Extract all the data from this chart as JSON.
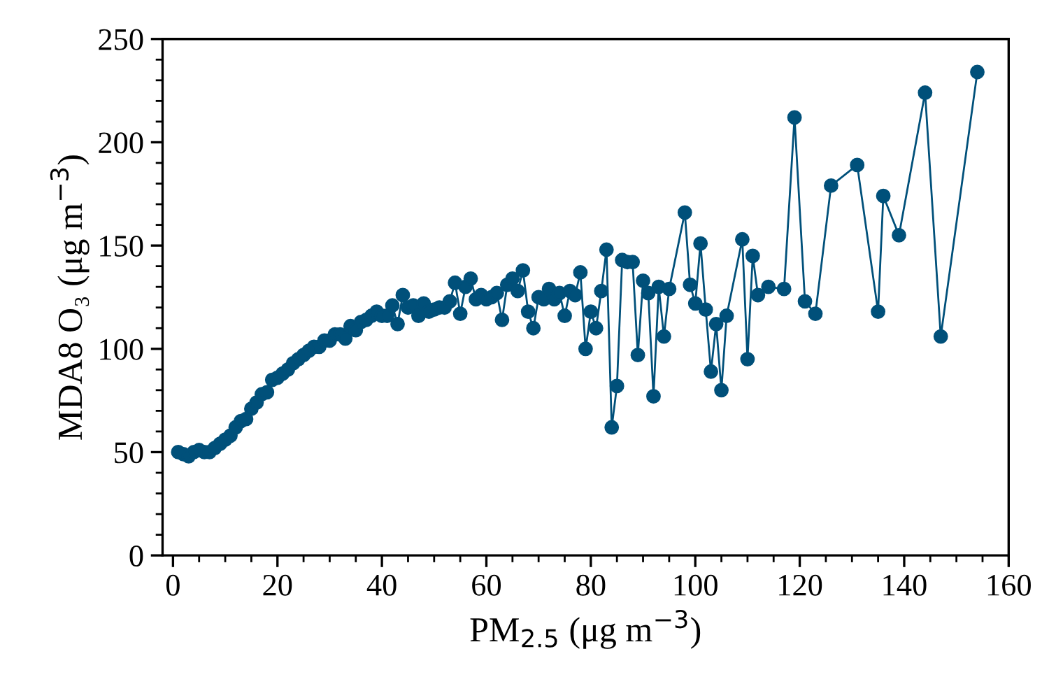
{
  "chart_data": {
    "type": "line",
    "xlabel": "PM$_{2.5}$ (μg m$^{−3}$)",
    "ylabel": "MDA8 O₃ (μg m$^{−3}$)",
    "x": [
      1,
      2,
      3,
      4,
      5,
      6,
      7,
      8,
      9,
      10,
      11,
      12,
      13,
      14,
      15,
      16,
      17,
      18,
      19,
      20,
      21,
      22,
      23,
      24,
      25,
      26,
      27,
      28,
      29,
      30,
      31,
      32,
      33,
      34,
      35,
      36,
      37,
      38,
      39,
      40,
      41,
      42,
      43,
      44,
      45,
      46,
      47,
      48,
      49,
      50,
      51,
      52,
      53,
      54,
      55,
      56,
      57,
      58,
      59,
      60,
      61,
      62,
      63,
      64,
      65,
      66,
      67,
      68,
      69,
      70,
      71,
      72,
      73,
      74,
      75,
      76,
      77,
      78,
      79,
      80,
      81,
      82,
      83,
      84,
      85,
      86,
      87,
      88,
      89,
      90,
      91,
      92,
      93,
      94,
      95,
      98,
      99,
      100,
      101,
      102,
      103,
      104,
      105,
      106,
      109,
      110,
      111,
      112,
      114,
      117,
      119,
      121,
      123,
      126,
      131,
      135,
      136,
      139,
      144,
      147,
      154
    ],
    "series": [
      {
        "color": "#00507a",
        "values": [
          50,
          49,
          48,
          50,
          51,
          50,
          50,
          52,
          54,
          56,
          58,
          62,
          65,
          66,
          71,
          74,
          78,
          79,
          85,
          86,
          88,
          90,
          93,
          95,
          97,
          99,
          101,
          101,
          104,
          104,
          107,
          107,
          105,
          111,
          109,
          113,
          114,
          116,
          118,
          116,
          116,
          121,
          112,
          126,
          120,
          121,
          116,
          122,
          118,
          119,
          120,
          120,
          123,
          132,
          117,
          130,
          134,
          124,
          126,
          124,
          125,
          127,
          114,
          131,
          134,
          128,
          138,
          118,
          110,
          125,
          124,
          129,
          124,
          127,
          116,
          128,
          126,
          137,
          100,
          118,
          110,
          128,
          148,
          62,
          82,
          143,
          142,
          142,
          97,
          133,
          127,
          77,
          130,
          106,
          129,
          166,
          131,
          122,
          151,
          119,
          89,
          112,
          80,
          116,
          153,
          95,
          145,
          126,
          130,
          129,
          212,
          123,
          117,
          179,
          189,
          118,
          174,
          155,
          224,
          106,
          234
        ]
      }
    ],
    "marker": "circle",
    "line_style": "solid",
    "grid": false,
    "legend": false,
    "xlim": [
      -2,
      160
    ],
    "xticks": [
      0,
      {
        "value": 5,
        "label": null
      },
      {
        "value": 10,
        "label": null
      },
      {
        "value": 15,
        "label": null
      },
      20,
      {
        "value": 25,
        "label": null
      },
      {
        "value": 30,
        "label": null
      },
      {
        "value": 35,
        "label": null
      },
      40,
      {
        "value": 45,
        "label": null
      },
      {
        "value": 50,
        "label": null
      },
      {
        "value": 55,
        "label": null
      },
      60,
      {
        "value": 65,
        "label": null
      },
      {
        "value": 70,
        "label": null
      },
      {
        "value": 75,
        "label": null
      },
      80,
      {
        "value": 85,
        "label": null
      },
      {
        "value": 90,
        "label": null
      },
      {
        "value": 95,
        "label": null
      },
      100,
      {
        "value": 105,
        "label": null
      },
      {
        "value": 110,
        "label": null
      },
      {
        "value": 115,
        "label": null
      },
      120,
      {
        "value": 125,
        "label": null
      },
      {
        "value": 130,
        "label": null
      },
      {
        "value": 135,
        "label": null
      },
      140,
      {
        "value": 145,
        "label": null
      },
      {
        "value": 150,
        "label": null
      },
      {
        "value": 155,
        "label": null
      },
      160
    ],
    "ylim": [
      0,
      250
    ],
    "yticks": [
      0,
      {
        "value": 10,
        "label": null
      },
      {
        "value": 20,
        "label": null
      },
      {
        "value": 30,
        "label": null
      },
      {
        "value": 40,
        "label": null
      },
      50,
      {
        "value": 60,
        "label": null
      },
      {
        "value": 70,
        "label": null
      },
      {
        "value": 80,
        "label": null
      },
      {
        "value": 90,
        "label": null
      },
      100,
      {
        "value": 110,
        "label": null
      },
      {
        "value": 120,
        "label": null
      },
      {
        "value": 130,
        "label": null
      },
      {
        "value": 140,
        "label": null
      },
      150,
      {
        "value": 160,
        "label": null
      },
      {
        "value": 170,
        "label": null
      },
      {
        "value": 180,
        "label": null
      },
      {
        "value": 190,
        "label": null
      },
      200,
      {
        "value": 210,
        "label": null
      },
      {
        "value": 220,
        "label": null
      },
      {
        "value": 230,
        "label": null
      },
      {
        "value": 240,
        "label": null
      },
      250
    ]
  }
}
